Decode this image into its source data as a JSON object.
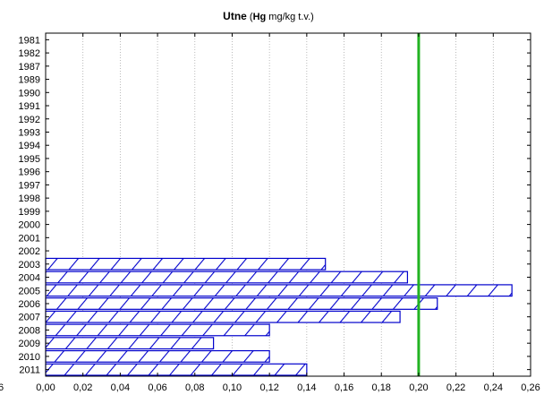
{
  "chart_data": {
    "type": "bar",
    "orientation": "horizontal",
    "title": {
      "main": "Utne",
      "open_paren": " (",
      "bold": "Hg",
      "rest": " mg/kg t.v.)"
    },
    "categories": [
      "1981",
      "1982",
      "1987",
      "1989",
      "1990",
      "1991",
      "1992",
      "1993",
      "1994",
      "1995",
      "1996",
      "1997",
      "1998",
      "1999",
      "2000",
      "2001",
      "2002",
      "2003",
      "2004",
      "2005",
      "2006",
      "2007",
      "2008",
      "2009",
      "2010",
      "2011"
    ],
    "values": [
      null,
      null,
      null,
      null,
      null,
      null,
      null,
      null,
      null,
      null,
      null,
      null,
      null,
      null,
      null,
      null,
      null,
      0.15,
      0.194,
      0.25,
      0.21,
      0.19,
      0.12,
      0.09,
      0.12,
      0.14
    ],
    "xlim": [
      0,
      0.26
    ],
    "xticks": [
      0,
      0.02,
      0.04,
      0.06,
      0.08,
      0.1,
      0.12,
      0.14,
      0.16,
      0.18,
      0.2,
      0.22,
      0.24,
      0.26
    ],
    "xtick_labels": [
      "0,00",
      "0,02",
      "0,04",
      "0,06",
      "0,08",
      "0,10",
      "0,12",
      "0,14",
      "0,16",
      "0,18",
      "0,20",
      "0,22",
      "0,24",
      "0,26"
    ],
    "left_cut_label": "6",
    "reference_line": {
      "value": 0.2,
      "color": "#22b322"
    },
    "bar_pattern": "diagonal-hatch",
    "colors": {
      "bar": "#0000cc",
      "grid": "#aaaaaa",
      "axis": "#000000"
    },
    "grid": {
      "x": true,
      "y": false
    }
  }
}
